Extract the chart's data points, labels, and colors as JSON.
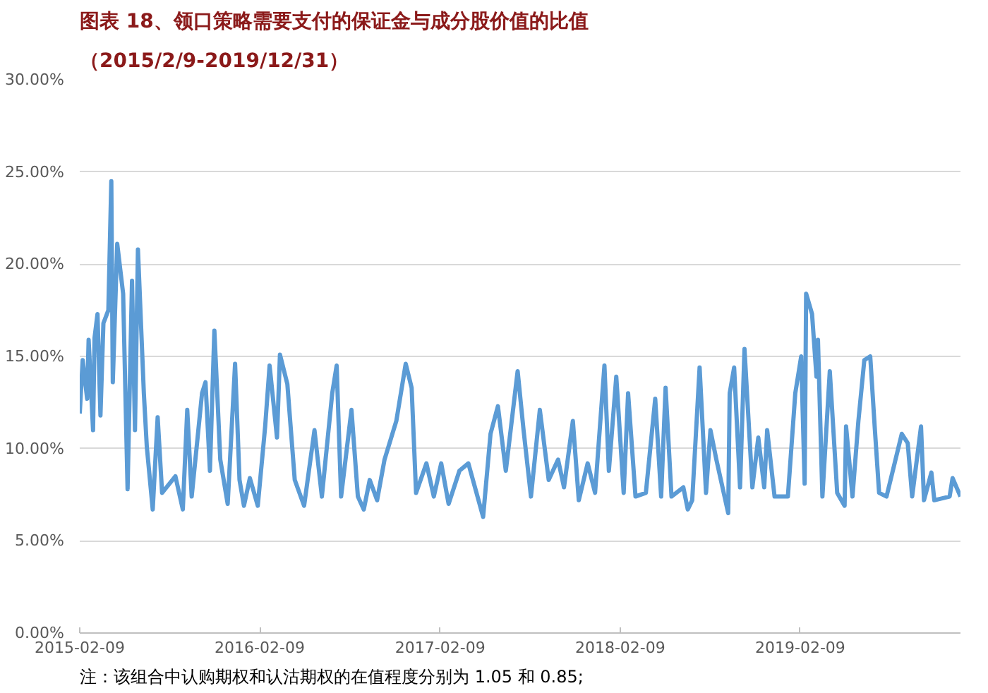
{
  "chart_data": {
    "type": "line",
    "title": "图表 18、领口策略需要支付的保证金与成分股价值的比值",
    "subtitle": "（2015/2/9-2019/12/31）",
    "annotations": [
      "注：该组合中认购期权和认沽期权的在值程度分别为 1.05 和 0.85;"
    ],
    "x": [
      "2015-02-09",
      "2015-02-15",
      "2015-02-24",
      "2015-02-27",
      "2015-03-08",
      "2015-03-11",
      "2015-03-17",
      "2015-03-23",
      "2015-03-29",
      "2015-04-08",
      "2015-04-14",
      "2015-04-17",
      "2015-04-26",
      "2015-05-08",
      "2015-05-17",
      "2015-05-26",
      "2015-06-01",
      "2015-06-07",
      "2015-06-19",
      "2015-06-25",
      "2015-07-07",
      "2015-07-17",
      "2015-07-26",
      "2015-08-22",
      "2015-09-06",
      "2015-09-15",
      "2015-09-24",
      "2015-10-15",
      "2015-10-22",
      "2015-10-31",
      "2015-11-09",
      "2015-11-21",
      "2015-12-06",
      "2015-12-21",
      "2015-12-30",
      "2016-01-08",
      "2016-01-20",
      "2016-02-05",
      "2016-02-20",
      "2016-02-29",
      "2016-03-15",
      "2016-03-21",
      "2016-04-05",
      "2016-04-20",
      "2016-05-09",
      "2016-05-30",
      "2016-06-14",
      "2016-07-05",
      "2016-07-14",
      "2016-07-23",
      "2016-08-13",
      "2016-08-26",
      "2016-09-07",
      "2016-09-19",
      "2016-10-04",
      "2016-10-19",
      "2016-11-12",
      "2016-12-01",
      "2016-12-13",
      "2016-12-22",
      "2017-01-12",
      "2017-01-27",
      "2017-02-11",
      "2017-02-26",
      "2017-03-20",
      "2017-04-07",
      "2017-05-07",
      "2017-05-22",
      "2017-06-06",
      "2017-06-22",
      "2017-07-16",
      "2017-07-28",
      "2017-08-12",
      "2017-08-30",
      "2017-09-17",
      "2017-10-06",
      "2017-10-18",
      "2017-11-05",
      "2017-11-17",
      "2017-12-05",
      "2017-12-20",
      "2018-01-08",
      "2018-01-17",
      "2018-02-01",
      "2018-02-16",
      "2018-02-25",
      "2018-03-12",
      "2018-04-02",
      "2018-04-21",
      "2018-05-03",
      "2018-05-12",
      "2018-05-24",
      "2018-06-17",
      "2018-06-26",
      "2018-07-05",
      "2018-07-20",
      "2018-08-02",
      "2018-08-11",
      "2018-08-23",
      "2018-09-16",
      "2018-09-19",
      "2018-09-28",
      "2018-10-10",
      "2018-10-19",
      "2018-11-04",
      "2018-11-16",
      "2018-11-28",
      "2018-12-04",
      "2018-12-19",
      "2019-01-15",
      "2019-01-30",
      "2019-02-11",
      "2019-02-18",
      "2019-02-21",
      "2019-03-05",
      "2019-03-14",
      "2019-03-17",
      "2019-03-26",
      "2019-04-10",
      "2019-04-25",
      "2019-05-10",
      "2019-05-13",
      "2019-05-26",
      "2019-06-07",
      "2019-06-19",
      "2019-07-01",
      "2019-07-10",
      "2019-07-19",
      "2019-08-03",
      "2019-09-03",
      "2019-09-15",
      "2019-09-24",
      "2019-10-12",
      "2019-10-18",
      "2019-11-02",
      "2019-11-08",
      "2019-12-09",
      "2019-12-15",
      "2019-12-31"
    ],
    "series": [
      {
        "color": "#5b9bd5",
        "values": [
          11.9,
          14.8,
          12.7,
          15.9,
          11.0,
          16.0,
          17.3,
          11.8,
          16.8,
          17.5,
          24.5,
          13.6,
          21.1,
          18.4,
          7.8,
          19.1,
          11.0,
          20.8,
          13.0,
          10.1,
          6.7,
          11.7,
          7.6,
          8.5,
          6.7,
          12.1,
          7.4,
          13.0,
          13.6,
          8.8,
          16.4,
          9.4,
          7.0,
          14.6,
          8.3,
          6.9,
          8.4,
          6.9,
          11.2,
          14.5,
          10.6,
          15.1,
          13.5,
          8.3,
          6.9,
          11.0,
          7.4,
          13.0,
          14.5,
          7.4,
          12.1,
          7.4,
          6.7,
          8.3,
          7.2,
          9.4,
          11.5,
          14.6,
          13.3,
          7.6,
          9.2,
          7.4,
          9.2,
          7.0,
          8.8,
          9.2,
          6.3,
          10.8,
          12.3,
          8.8,
          14.2,
          11.0,
          7.4,
          12.1,
          8.3,
          9.4,
          7.9,
          11.5,
          7.2,
          9.2,
          7.6,
          14.5,
          8.8,
          13.9,
          7.6,
          13.0,
          7.4,
          7.6,
          12.7,
          7.4,
          13.3,
          7.4,
          7.9,
          6.7,
          7.2,
          14.4,
          7.6,
          11.0,
          9.4,
          6.5,
          13.0,
          14.4,
          7.9,
          15.4,
          7.9,
          10.6,
          7.9,
          11.0,
          7.4,
          7.4,
          13.0,
          15.0,
          8.1,
          18.4,
          17.3,
          13.9,
          15.9,
          7.4,
          14.2,
          7.6,
          6.9,
          11.2,
          7.4,
          11.5,
          14.8,
          15.0,
          11.2,
          7.6,
          7.4,
          10.8,
          10.3,
          7.4,
          11.2,
          7.2,
          8.7,
          7.2,
          7.4,
          8.4,
          7.4
        ]
      }
    ],
    "xlim": [
      "2015-02-09",
      "2019-12-31"
    ],
    "xticks": [
      "2015-02-09",
      "2016-02-09",
      "2017-02-09",
      "2018-02-09",
      "2019-02-09"
    ],
    "ylim": [
      0,
      30
    ],
    "yticks": [
      {
        "value": 0,
        "label": "0.00%"
      },
      {
        "value": 5,
        "label": "5.00%"
      },
      {
        "value": 10,
        "label": "10.00%"
      },
      {
        "value": 15,
        "label": "15.00%"
      },
      {
        "value": 20,
        "label": "20.00%"
      },
      {
        "value": 25,
        "label": "25.00%"
      },
      {
        "value": 30,
        "label": "30.00%"
      }
    ],
    "grid": "y",
    "marker": "none",
    "line_style": "solid"
  }
}
